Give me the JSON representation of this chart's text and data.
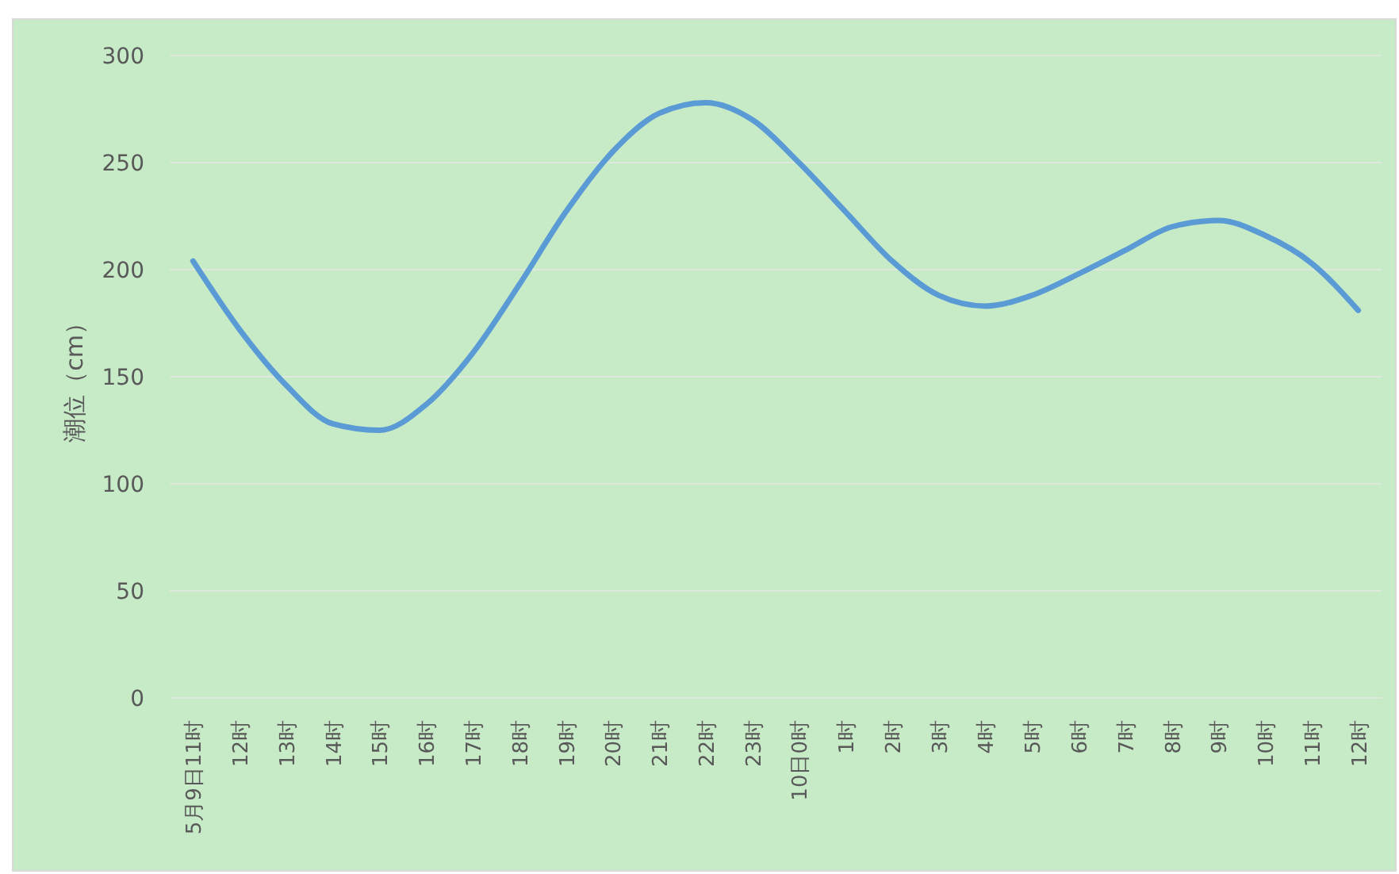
{
  "chart_data": {
    "type": "line",
    "ylabel": "潮位（cm）",
    "categories": [
      "5月9日11时",
      "12时",
      "13时",
      "14时",
      "15时",
      "16时",
      "17时",
      "18时",
      "19时",
      "20时",
      "21时",
      "22时",
      "23时",
      "10日0时",
      "1时",
      "2时",
      "3时",
      "4时",
      "5时",
      "6时",
      "7时",
      "8时",
      "9时",
      "10时",
      "11时",
      "12时"
    ],
    "series": [
      {
        "color": "#5b9bd5",
        "values": [
          204,
          172,
          146,
          128,
          125,
          137,
          161,
          193,
          227,
          255,
          273,
          278,
          270,
          250,
          227,
          204,
          188,
          183,
          188,
          198,
          209,
          220,
          223,
          216,
          203,
          181
        ]
      }
    ],
    "ylim": [
      0,
      300
    ],
    "yticks": [
      0,
      50,
      100,
      150,
      200,
      250,
      300
    ],
    "grid": "y",
    "marker": "none",
    "line_style": "solid"
  }
}
